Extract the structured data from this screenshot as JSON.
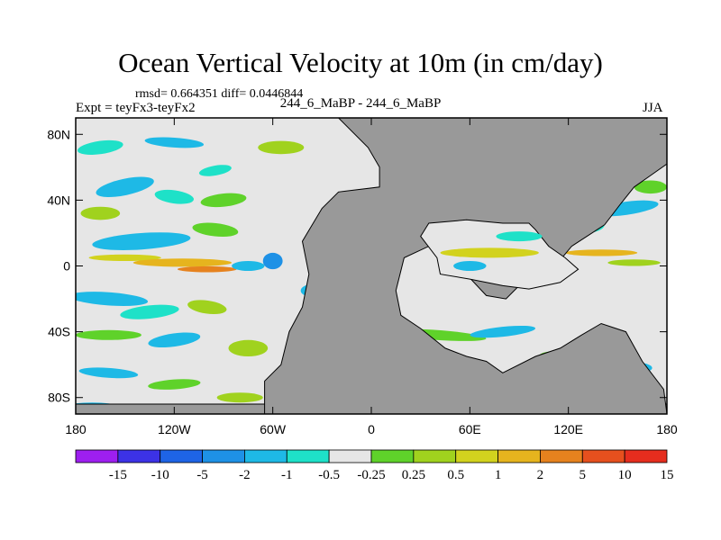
{
  "title": "Ocean Vertical Velocity at 10m (in cm/day)",
  "stats": "rmsd= 0.664351 diff= 0.0446844",
  "expt": "Expt = teyFx3-teyFx2",
  "subtitle": "244_6_MaBP - 244_6_MaBP",
  "season": "JJA",
  "chart_data": {
    "type": "heatmap",
    "title": "Ocean Vertical Velocity at 10m (in cm/day)",
    "x_ticks": [
      {
        "value": -180,
        "label": "180"
      },
      {
        "value": -120,
        "label": "120W"
      },
      {
        "value": -60,
        "label": "60W"
      },
      {
        "value": 0,
        "label": "0"
      },
      {
        "value": 60,
        "label": "60E"
      },
      {
        "value": 120,
        "label": "120E"
      },
      {
        "value": 180,
        "label": "180"
      }
    ],
    "y_ticks": [
      {
        "value": 80,
        "label": "80N"
      },
      {
        "value": 40,
        "label": "40N"
      },
      {
        "value": 0,
        "label": "0"
      },
      {
        "value": -40,
        "label": "40S"
      },
      {
        "value": -80,
        "label": "80S"
      }
    ],
    "xlim": [
      -180,
      180
    ],
    "ylim": [
      -90,
      90
    ],
    "land_color": "#999999",
    "colorbar": {
      "colors": [
        "#9e1ff0",
        "#3c32e6",
        "#1e64e6",
        "#1e91e6",
        "#1eb9e6",
        "#1ee1c8",
        "#e6e6e6",
        "#5fd22a",
        "#a0d21e",
        "#d2d21e",
        "#e6b41e",
        "#e6821e",
        "#e6501e",
        "#e62d1e"
      ],
      "labels": [
        "-15",
        "-10",
        "-5",
        "-2",
        "-1",
        "-0.5",
        "-0.25",
        "0.25",
        "0.5",
        "1",
        "2",
        "5",
        "10",
        "15"
      ]
    }
  }
}
